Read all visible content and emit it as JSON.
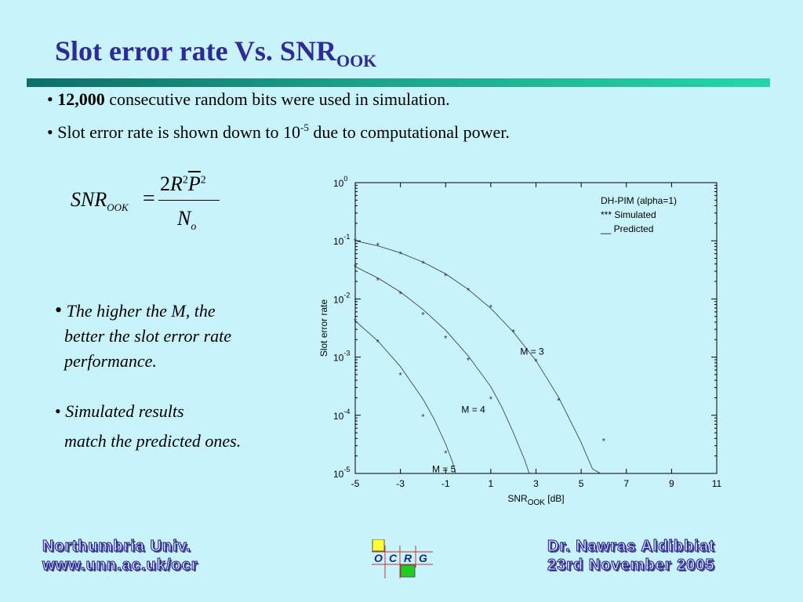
{
  "slide": {
    "title_main": "Slot error rate Vs. SNR",
    "title_sub": "OOK",
    "bullets": [
      {
        "prefix": "• ",
        "bold": "12,000",
        "text": " consecutive random bits were used in simulation."
      },
      {
        "prefix": "• ",
        "text_before": "Slot error rate is shown down to 10",
        "sup": "-5",
        "text_after": " due to computational power."
      }
    ],
    "formula": {
      "lhs": "SNR",
      "lhs_sub": "OOK",
      "eq": "=",
      "num_coef": "2",
      "num_r": "R",
      "num_r_exp": "2",
      "num_p": "P",
      "num_p_exp": "2",
      "den": "N",
      "den_sub": "o"
    },
    "notes": [
      {
        "bullet": "•",
        "lines": [
          "The higher the M, the",
          "better the slot error rate",
          "performance."
        ]
      },
      {
        "bullet": "•",
        "lines": [
          "Simulated results",
          "match the predicted ones."
        ]
      }
    ],
    "footer_left": [
      "Northumbria   Univ.",
      "www.unn.ac.uk/ocr"
    ],
    "footer_right": [
      "Dr. Nawras Aldibbiat",
      "23rd November 2005"
    ],
    "logo_letters": [
      "O",
      "C",
      "R",
      "G"
    ],
    "colors": {
      "title": "#2e2a98",
      "background": "#c9f3fb",
      "logo_yellow": "#ffff33",
      "logo_green": "#22cc22"
    }
  },
  "chart_data": {
    "type": "line",
    "ylabel": "Slot error rate",
    "xlabel_main": "SNR",
    "xlabel_sub": "OOK",
    "xlabel_unit": " [dB]",
    "xlim": [
      -5,
      11
    ],
    "ylim_log10": [
      -5,
      0
    ],
    "y_scale": "log",
    "x_ticks": [
      -5,
      -3,
      -1,
      1,
      3,
      5,
      7,
      9,
      11
    ],
    "y_tick_labels": [
      {
        "base": "10",
        "exp": "0"
      },
      {
        "base": "10",
        "exp": "-1"
      },
      {
        "base": "10",
        "exp": "-2"
      },
      {
        "base": "10",
        "exp": "-3"
      },
      {
        "base": "10",
        "exp": "-4"
      },
      {
        "base": "10",
        "exp": "-5"
      }
    ],
    "legend": [
      "DH-PIM (alpha=1)",
      "*** Simulated",
      "__ Predicted"
    ],
    "series": [
      {
        "name": "M = 3",
        "predicted": [
          [
            -5,
            0.1
          ],
          [
            -4,
            0.082
          ],
          [
            -3,
            0.062
          ],
          [
            -2,
            0.043
          ],
          [
            -1,
            0.027
          ],
          [
            0,
            0.0146
          ],
          [
            1,
            0.0069
          ],
          [
            2,
            0.0027
          ],
          [
            3,
            0.00087
          ],
          [
            4,
            0.000205
          ],
          [
            5,
            3.4e-05
          ],
          [
            5.5,
            1.2e-05
          ],
          [
            5.85,
            1e-05
          ]
        ],
        "simulated": [
          [
            -5,
            0.1
          ],
          [
            -4,
            0.083
          ],
          [
            -3,
            0.059
          ],
          [
            -2,
            0.041
          ],
          [
            -1,
            0.025
          ],
          [
            0,
            0.0141
          ],
          [
            1,
            0.0072
          ],
          [
            2,
            0.0027
          ],
          [
            3,
            0.00085
          ],
          [
            4,
            0.00018
          ],
          [
            6,
            3.6e-05
          ]
        ]
      },
      {
        "name": "M = 4",
        "predicted": [
          [
            -5,
            0.036
          ],
          [
            -4,
            0.023
          ],
          [
            -3,
            0.0132
          ],
          [
            -2,
            0.0066
          ],
          [
            -1,
            0.0029
          ],
          [
            0,
            0.00105
          ],
          [
            1,
            0.00031
          ],
          [
            1.5,
            0.000135
          ],
          [
            2,
            5e-05
          ],
          [
            2.5,
            1.7e-05
          ],
          [
            2.7,
            1e-05
          ]
        ],
        "simulated": [
          [
            -5,
            0.036
          ],
          [
            -4,
            0.021
          ],
          [
            -3,
            0.0122
          ],
          [
            -2,
            0.0054
          ],
          [
            -1,
            0.0021
          ],
          [
            0,
            0.00089
          ],
          [
            1,
            0.00019
          ]
        ]
      },
      {
        "name": "M = 5",
        "predicted": [
          [
            -5,
            0.0042
          ],
          [
            -4,
            0.0019
          ],
          [
            -3,
            0.00069
          ],
          [
            -2,
            0.00019
          ],
          [
            -1.5,
            8.5e-05
          ],
          [
            -1,
            3.2e-05
          ],
          [
            -0.7,
            1.6e-05
          ],
          [
            -0.55,
            1e-05
          ]
        ],
        "simulated": [
          [
            -5,
            0.0042
          ],
          [
            -4,
            0.0018
          ],
          [
            -3,
            0.00049
          ],
          [
            -2,
            9.45e-05
          ],
          [
            -1,
            2.25e-05
          ]
        ]
      }
    ],
    "annotations": [
      {
        "text": "M = 3",
        "x": 2.3,
        "y": 0.0011
      },
      {
        "text": "M = 4",
        "x": -0.3,
        "y": 0.00011
      },
      {
        "text": "M = 5",
        "x": -1.6,
        "y": 1.05e-05
      }
    ]
  }
}
